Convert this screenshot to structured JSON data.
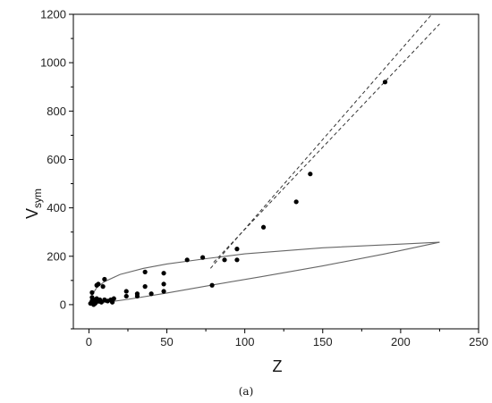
{
  "chart_data": {
    "type": "scatter",
    "xlabel": "Z",
    "ylabel_main": "V",
    "ylabel_sub": "sym",
    "xlim": [
      -10,
      250
    ],
    "ylim": [
      -100,
      1200
    ],
    "xticks": [
      0,
      50,
      100,
      150,
      200,
      250
    ],
    "yticks": [
      0,
      200,
      400,
      600,
      800,
      1000,
      1200
    ],
    "grid": false,
    "points": [
      {
        "x": 1,
        "y": 5
      },
      {
        "x": 2,
        "y": 15
      },
      {
        "x": 2,
        "y": 30
      },
      {
        "x": 2,
        "y": 50
      },
      {
        "x": 3,
        "y": 0
      },
      {
        "x": 3,
        "y": 10
      },
      {
        "x": 4,
        "y": 20
      },
      {
        "x": 4,
        "y": 5
      },
      {
        "x": 5,
        "y": 25
      },
      {
        "x": 5,
        "y": 80
      },
      {
        "x": 6,
        "y": 15
      },
      {
        "x": 6,
        "y": 85
      },
      {
        "x": 7,
        "y": 20
      },
      {
        "x": 8,
        "y": 10
      },
      {
        "x": 9,
        "y": 75
      },
      {
        "x": 10,
        "y": 20
      },
      {
        "x": 10,
        "y": 105
      },
      {
        "x": 12,
        "y": 15
      },
      {
        "x": 14,
        "y": 20
      },
      {
        "x": 15,
        "y": 10
      },
      {
        "x": 16,
        "y": 25
      },
      {
        "x": 24,
        "y": 35
      },
      {
        "x": 24,
        "y": 55
      },
      {
        "x": 31,
        "y": 35
      },
      {
        "x": 31,
        "y": 45
      },
      {
        "x": 36,
        "y": 75
      },
      {
        "x": 36,
        "y": 135
      },
      {
        "x": 40,
        "y": 45
      },
      {
        "x": 48,
        "y": 55
      },
      {
        "x": 48,
        "y": 85
      },
      {
        "x": 48,
        "y": 130
      },
      {
        "x": 63,
        "y": 185
      },
      {
        "x": 73,
        "y": 195
      },
      {
        "x": 79,
        "y": 80
      },
      {
        "x": 87,
        "y": 185
      },
      {
        "x": 95,
        "y": 230
      },
      {
        "x": 95,
        "y": 185
      },
      {
        "x": 112,
        "y": 320
      },
      {
        "x": 133,
        "y": 425
      },
      {
        "x": 142,
        "y": 540
      },
      {
        "x": 190,
        "y": 920
      }
    ],
    "upper_curve": [
      {
        "x": 0,
        "y": 0
      },
      {
        "x": 2,
        "y": 40
      },
      {
        "x": 5,
        "y": 70
      },
      {
        "x": 10,
        "y": 95
      },
      {
        "x": 20,
        "y": 125
      },
      {
        "x": 35,
        "y": 150
      },
      {
        "x": 50,
        "y": 168
      },
      {
        "x": 75,
        "y": 190
      },
      {
        "x": 100,
        "y": 210
      },
      {
        "x": 150,
        "y": 235
      },
      {
        "x": 200,
        "y": 250
      },
      {
        "x": 225,
        "y": 258
      }
    ],
    "lower_curve": [
      {
        "x": 0,
        "y": 0
      },
      {
        "x": 25,
        "y": 22
      },
      {
        "x": 50,
        "y": 48
      },
      {
        "x": 80,
        "y": 82
      },
      {
        "x": 110,
        "y": 115
      },
      {
        "x": 150,
        "y": 160
      },
      {
        "x": 190,
        "y": 210
      },
      {
        "x": 225,
        "y": 258
      }
    ],
    "dashed_lines": [
      {
        "x1": 78,
        "y1": 150,
        "x2": 220,
        "y2": 1200
      },
      {
        "x1": 80,
        "y1": 175,
        "x2": 225,
        "y2": 1160
      }
    ],
    "caption": "(a)"
  }
}
